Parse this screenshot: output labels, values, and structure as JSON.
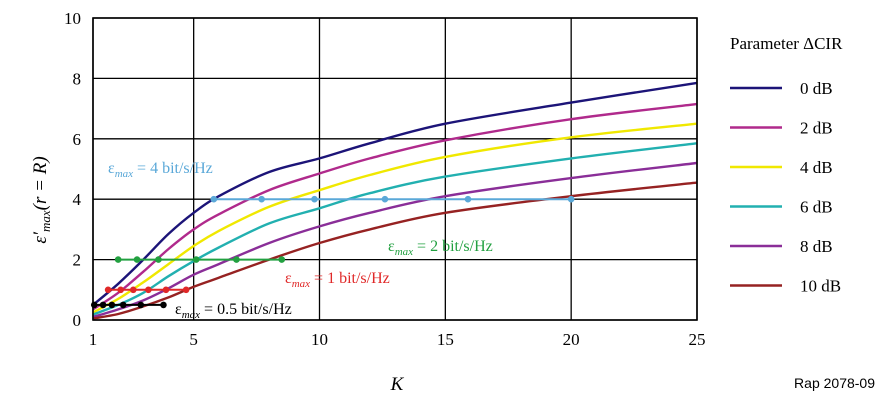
{
  "chart_data": {
    "type": "line",
    "xlabel": "K",
    "ylabel": "ε′max(r = R)",
    "xlim": [
      1,
      25
    ],
    "ylim": [
      0,
      10
    ],
    "xticks": [
      1,
      5,
      10,
      15,
      20,
      25
    ],
    "yticks": [
      0,
      2,
      4,
      6,
      8,
      10
    ],
    "grid": true,
    "legend": {
      "title": "Parameter ΔCIR",
      "placement": "right"
    },
    "reference": "Rap 2078-09",
    "series": [
      {
        "name": "0 dB",
        "color": "#1c1478",
        "x": [
          1,
          2,
          3,
          4,
          5,
          6,
          8,
          10,
          12,
          15,
          20,
          25
        ],
        "y": [
          0.5,
          1.2,
          2.0,
          2.85,
          3.55,
          4.1,
          4.9,
          5.35,
          5.85,
          6.5,
          7.2,
          7.85
        ]
      },
      {
        "name": "2 dB",
        "color": "#b02a8c",
        "x": [
          1,
          2,
          3,
          4,
          5,
          6,
          8,
          10,
          12,
          15,
          20,
          25
        ],
        "y": [
          0.35,
          0.9,
          1.6,
          2.35,
          3.0,
          3.5,
          4.3,
          4.85,
          5.35,
          5.95,
          6.65,
          7.15
        ]
      },
      {
        "name": "4 dB",
        "color": "#f0e800",
        "x": [
          1,
          2,
          3,
          4,
          5,
          6,
          8,
          10,
          12,
          15,
          20,
          25
        ],
        "y": [
          0.25,
          0.7,
          1.25,
          1.85,
          2.45,
          2.95,
          3.75,
          4.3,
          4.8,
          5.4,
          6.05,
          6.5
        ]
      },
      {
        "name": "6 dB",
        "color": "#22b0b0",
        "x": [
          1,
          2,
          3,
          4,
          5,
          6,
          8,
          10,
          12,
          15,
          20,
          25
        ],
        "y": [
          0.18,
          0.5,
          0.9,
          1.45,
          1.95,
          2.4,
          3.2,
          3.7,
          4.2,
          4.75,
          5.35,
          5.85
        ]
      },
      {
        "name": "8 dB",
        "color": "#8a2e98",
        "x": [
          1,
          2,
          3,
          4,
          5,
          6,
          8,
          10,
          12,
          15,
          20,
          25
        ],
        "y": [
          0.1,
          0.35,
          0.65,
          1.05,
          1.5,
          1.85,
          2.55,
          3.1,
          3.55,
          4.1,
          4.7,
          5.2
        ]
      },
      {
        "name": "10 dB",
        "color": "#962222",
        "x": [
          1,
          2,
          3,
          4,
          5,
          6,
          8,
          10,
          12,
          15,
          20,
          25
        ],
        "y": [
          0.05,
          0.2,
          0.45,
          0.75,
          1.1,
          1.4,
          2.0,
          2.55,
          3.0,
          3.55,
          4.1,
          4.55
        ]
      }
    ],
    "annotations": [
      {
        "text_symbol": "ε",
        "text_sub": "max",
        "text_rest": " = 4 bit/s/Hz",
        "color": "#5aa8d8",
        "value": 4,
        "x_start": 5.8,
        "x_end": 20,
        "markers_x": [
          5.8,
          7.7,
          9.8,
          12.6,
          15.9,
          20
        ]
      },
      {
        "text_symbol": "ε",
        "text_sub": "max",
        "text_rest": " = 2 bit/s/Hz",
        "color": "#22a040",
        "value": 2,
        "x_start": 2.0,
        "x_end": 8.5,
        "markers_x": [
          2.0,
          2.75,
          3.6,
          5.1,
          6.7,
          8.5
        ]
      },
      {
        "text_symbol": "ε",
        "text_sub": "max",
        "text_rest": " = 1 bit/s/Hz",
        "color": "#e02828",
        "value": 1,
        "x_start": 1.6,
        "x_end": 4.7,
        "markers_x": [
          1.6,
          2.1,
          2.6,
          3.2,
          3.9,
          4.7
        ]
      },
      {
        "text_symbol": "ε",
        "text_sub": "max",
        "text_rest": " = 0.5 bit/s/Hz",
        "color": "#000000",
        "value": 0.5,
        "x_start": 1.05,
        "x_end": 3.8,
        "markers_x": [
          1.05,
          1.4,
          1.75,
          2.2,
          2.9,
          3.8
        ]
      }
    ]
  }
}
